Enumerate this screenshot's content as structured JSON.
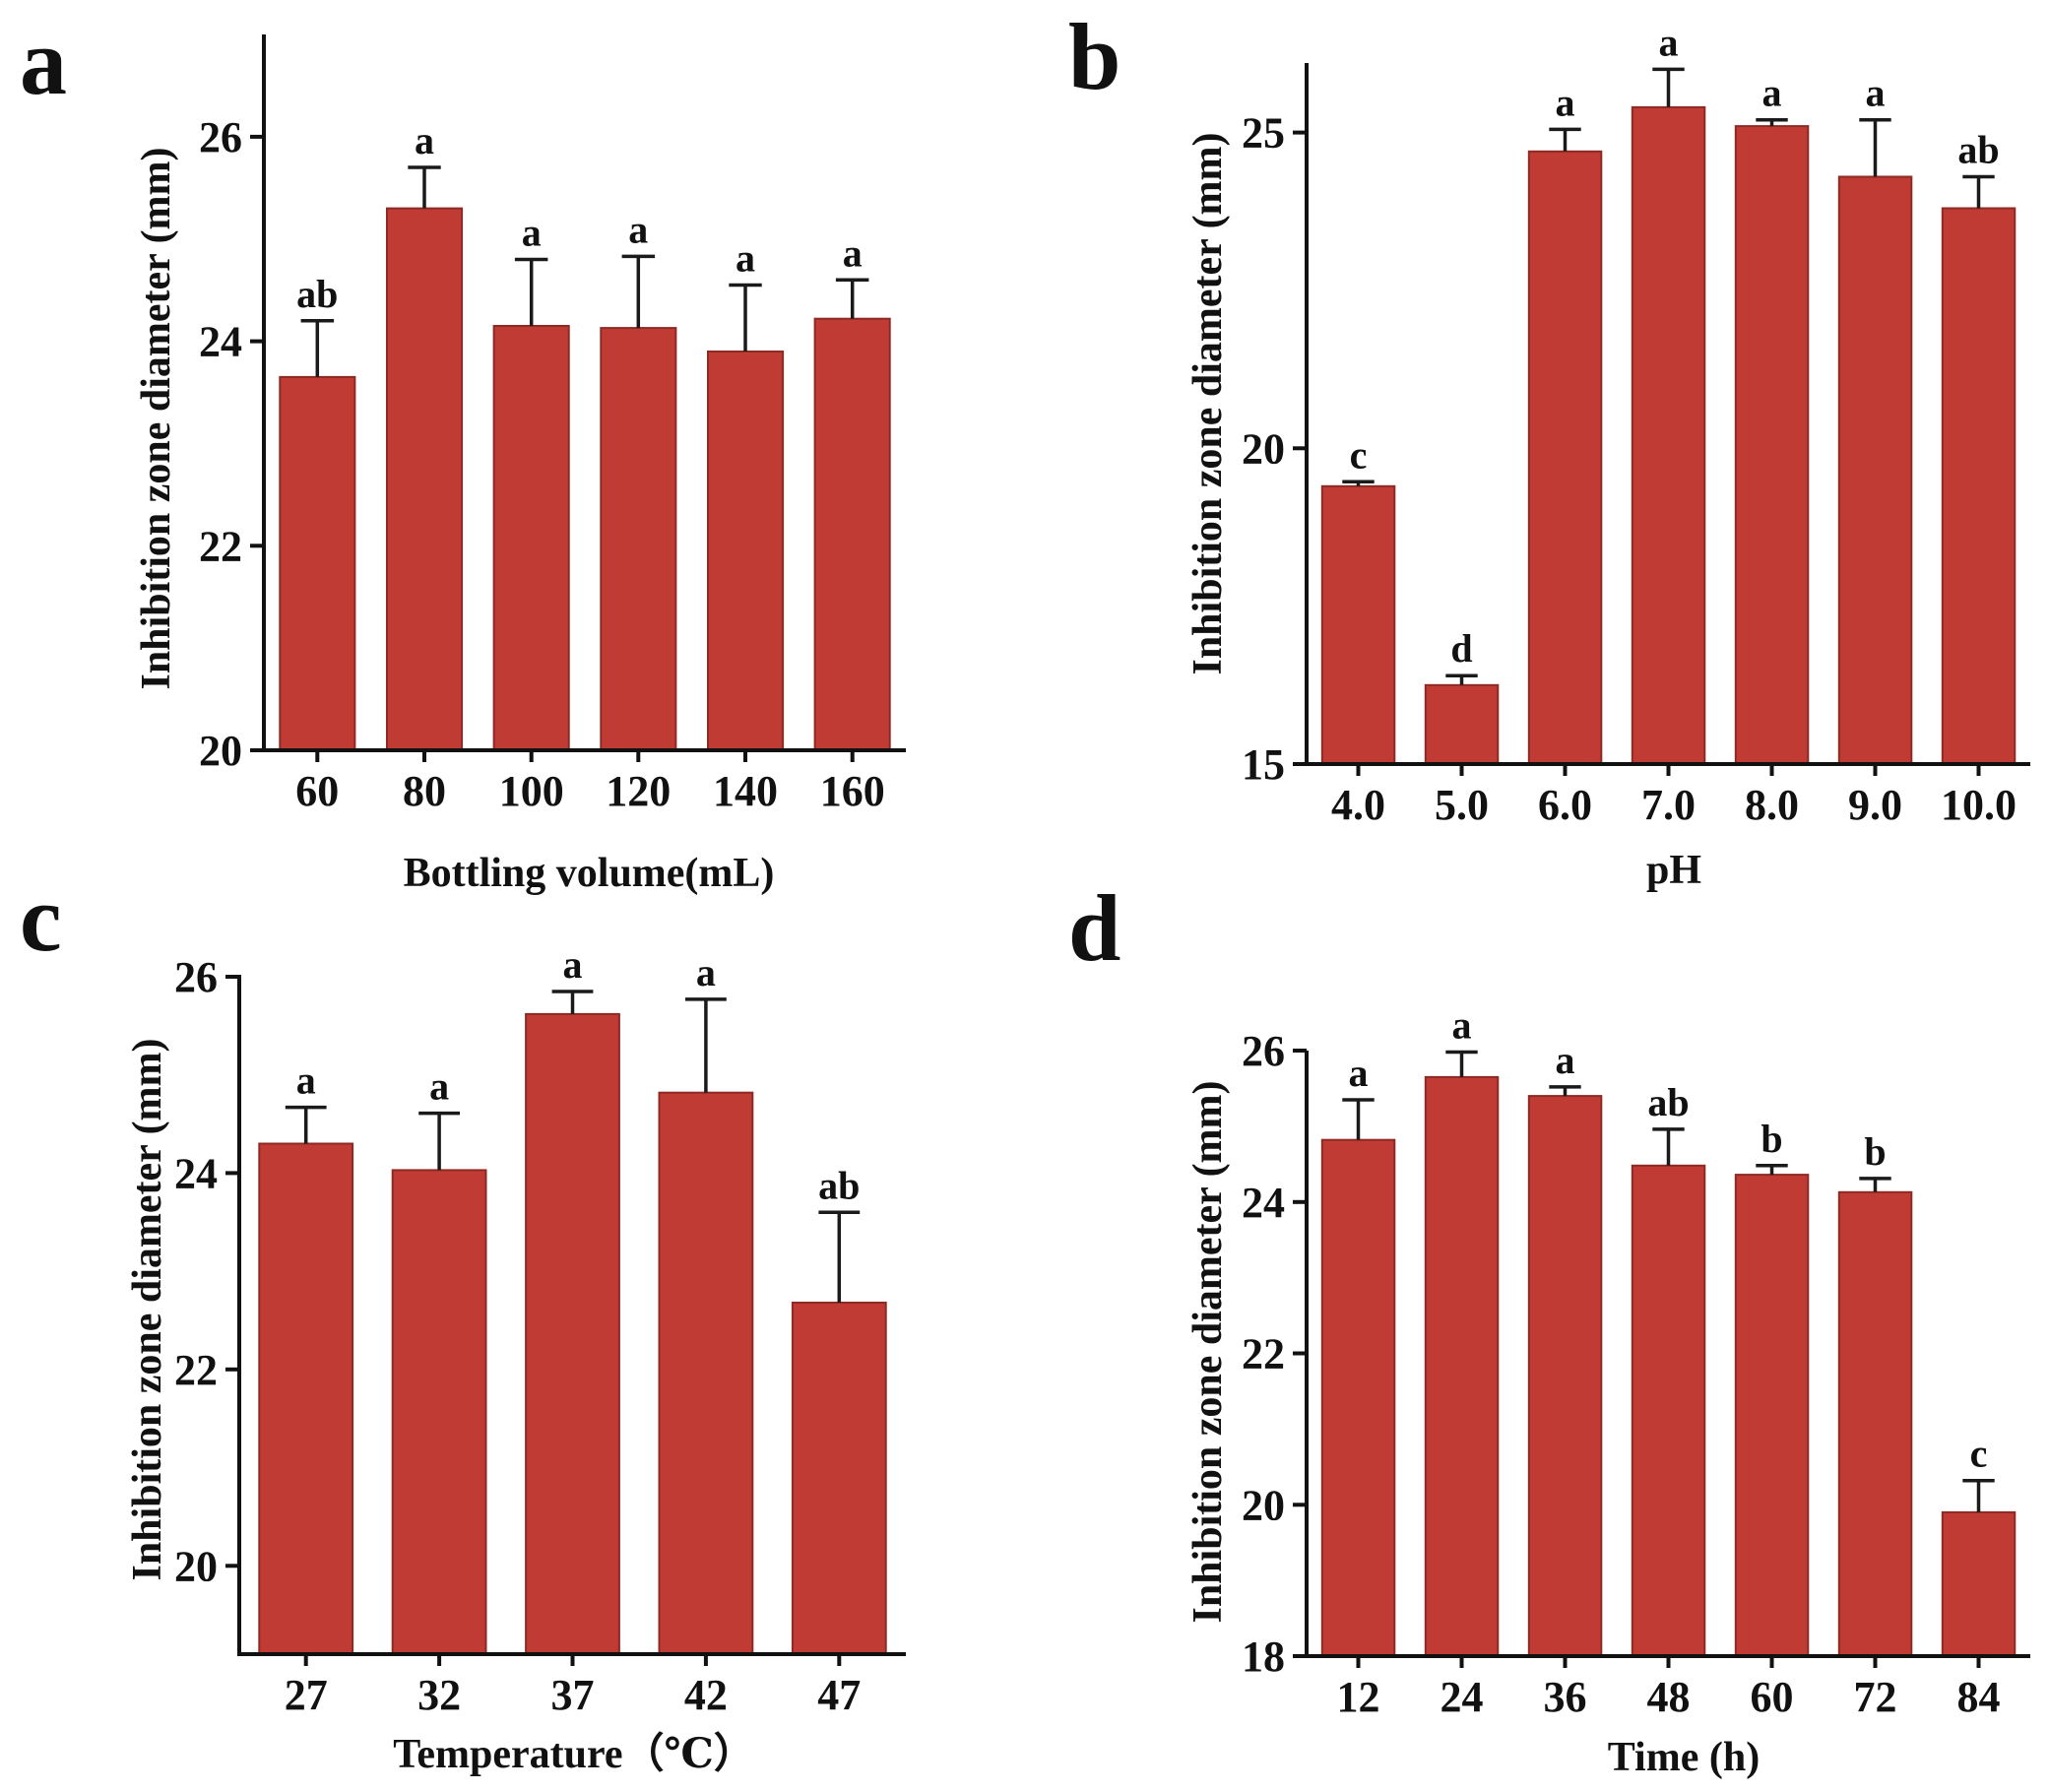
{
  "figure": {
    "bar_color": "#BF3B33",
    "edge_color": "#8E2A24",
    "axis_color": "#111111"
  },
  "chart_data": [
    {
      "type": "bar",
      "panel": "a",
      "categories": [
        "60",
        "80",
        "100",
        "120",
        "140",
        "160"
      ],
      "values": [
        23.65,
        25.3,
        24.15,
        24.13,
        23.9,
        24.22
      ],
      "errors": [
        0.55,
        0.4,
        0.65,
        0.7,
        0.65,
        0.38
      ],
      "significance": [
        "ab",
        "a",
        "a",
        "a",
        "a",
        "a"
      ],
      "xlabel": "Bottling volume(mL)",
      "ylabel": "Inhibition zone diameter (mm)",
      "ylim": [
        20,
        27
      ],
      "yticks": [
        20,
        22,
        24,
        26
      ]
    },
    {
      "type": "bar",
      "panel": "b",
      "categories": [
        "4.0",
        "5.0",
        "6.0",
        "7.0",
        "8.0",
        "9.0",
        "10.0"
      ],
      "values": [
        19.4,
        16.25,
        24.7,
        25.4,
        25.1,
        24.3,
        23.8
      ],
      "errors": [
        0.07,
        0.15,
        0.35,
        0.6,
        0.1,
        0.9,
        0.5
      ],
      "significance": [
        "c",
        "d",
        "a",
        "a",
        "a",
        "a",
        "ab"
      ],
      "xlabel": "pH",
      "ylabel": "Inhibition zone diameter (mm)",
      "ylim": [
        15,
        26.1
      ],
      "yticks": [
        15,
        20,
        25
      ]
    },
    {
      "type": "bar",
      "panel": "c",
      "categories": [
        "27",
        "32",
        "37",
        "42",
        "47"
      ],
      "values": [
        24.3,
        24.03,
        25.62,
        24.82,
        22.68
      ],
      "errors": [
        0.37,
        0.58,
        0.23,
        0.95,
        0.92
      ],
      "significance": [
        "a",
        "a",
        "a",
        "a",
        "ab"
      ],
      "xlabel": "Temperature（℃）",
      "ylabel": "Inhibition zone diameter (mm)",
      "ylim": [
        19.1,
        26
      ],
      "yticks": [
        20,
        22,
        24,
        26
      ]
    },
    {
      "type": "bar",
      "panel": "d",
      "categories": [
        "12",
        "24",
        "36",
        "48",
        "60",
        "72",
        "84"
      ],
      "values": [
        24.82,
        25.65,
        25.4,
        24.48,
        24.36,
        24.13,
        19.9
      ],
      "errors": [
        0.53,
        0.33,
        0.12,
        0.48,
        0.12,
        0.18,
        0.42
      ],
      "significance": [
        "a",
        "a",
        "a",
        "ab",
        "b",
        "b",
        "c"
      ],
      "xlabel": "Time (h)",
      "ylabel": "Inhibition zone diameter (mm)",
      "ylim": [
        18,
        26
      ],
      "yticks": [
        18,
        20,
        22,
        24,
        26
      ]
    }
  ]
}
